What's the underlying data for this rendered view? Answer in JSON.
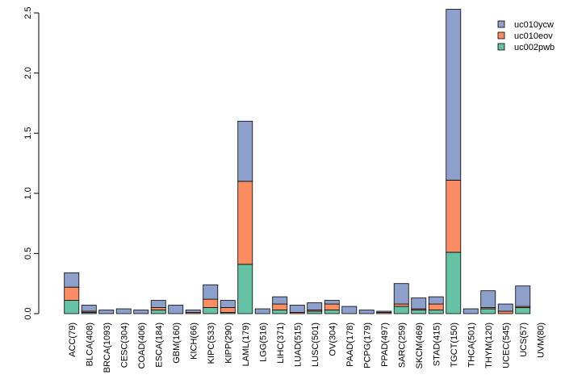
{
  "chart_data": {
    "type": "bar",
    "stacked": true,
    "title": "",
    "xlabel": "",
    "ylabel": "",
    "ylim": [
      0,
      2.5
    ],
    "yticks": [
      "0.0",
      "0.5",
      "1.0",
      "1.5",
      "2.0",
      "2.5"
    ],
    "grid": false,
    "legend_position": "top-right",
    "categories": [
      "ACC(79)",
      "BLCA(408)",
      "BRCA(1093)",
      "CESC(304)",
      "COAD(406)",
      "ESCA(184)",
      "GBM(160)",
      "KICH(66)",
      "KIPC(533)",
      "KIPP(290)",
      "LAML(179)",
      "LGG(516)",
      "LIHC(371)",
      "LUAD(515)",
      "LUSC(501)",
      "OV(304)",
      "PAAD(178)",
      "PCPG(179)",
      "PPAD(497)",
      "SARC(259)",
      "SKCM(469)",
      "STAD(415)",
      "TGCT(150)",
      "THCA(501)",
      "THYM(120)",
      "UCEC(545)",
      "UCS(57)",
      "UVM(80)"
    ],
    "series": [
      {
        "name": "uc002pwb",
        "color": "#66c2a5",
        "values": [
          0.11,
          0.01,
          0.0,
          0.0,
          0.0,
          0.03,
          0.0,
          0.0,
          0.05,
          0.01,
          0.41,
          0.0,
          0.03,
          0.0,
          0.02,
          0.03,
          0.0,
          0.0,
          0.0,
          0.06,
          0.03,
          0.03,
          0.51,
          0.0,
          0.04,
          0.0,
          0.05,
          0.0
        ]
      },
      {
        "name": "uc010eov",
        "color": "#fc8d62",
        "values": [
          0.11,
          0.01,
          0.0,
          0.0,
          0.0,
          0.02,
          0.0,
          0.01,
          0.07,
          0.04,
          0.69,
          0.0,
          0.05,
          0.01,
          0.01,
          0.05,
          0.0,
          0.0,
          0.01,
          0.02,
          0.01,
          0.05,
          0.6,
          0.0,
          0.01,
          0.02,
          0.01,
          0.0
        ]
      },
      {
        "name": "uc010ycw",
        "color": "#8da0cb",
        "values": [
          0.12,
          0.05,
          0.03,
          0.04,
          0.03,
          0.06,
          0.07,
          0.02,
          0.12,
          0.06,
          0.5,
          0.04,
          0.06,
          0.06,
          0.06,
          0.03,
          0.06,
          0.03,
          0.01,
          0.17,
          0.09,
          0.06,
          1.42,
          0.04,
          0.14,
          0.06,
          0.17,
          0.0
        ]
      }
    ]
  }
}
